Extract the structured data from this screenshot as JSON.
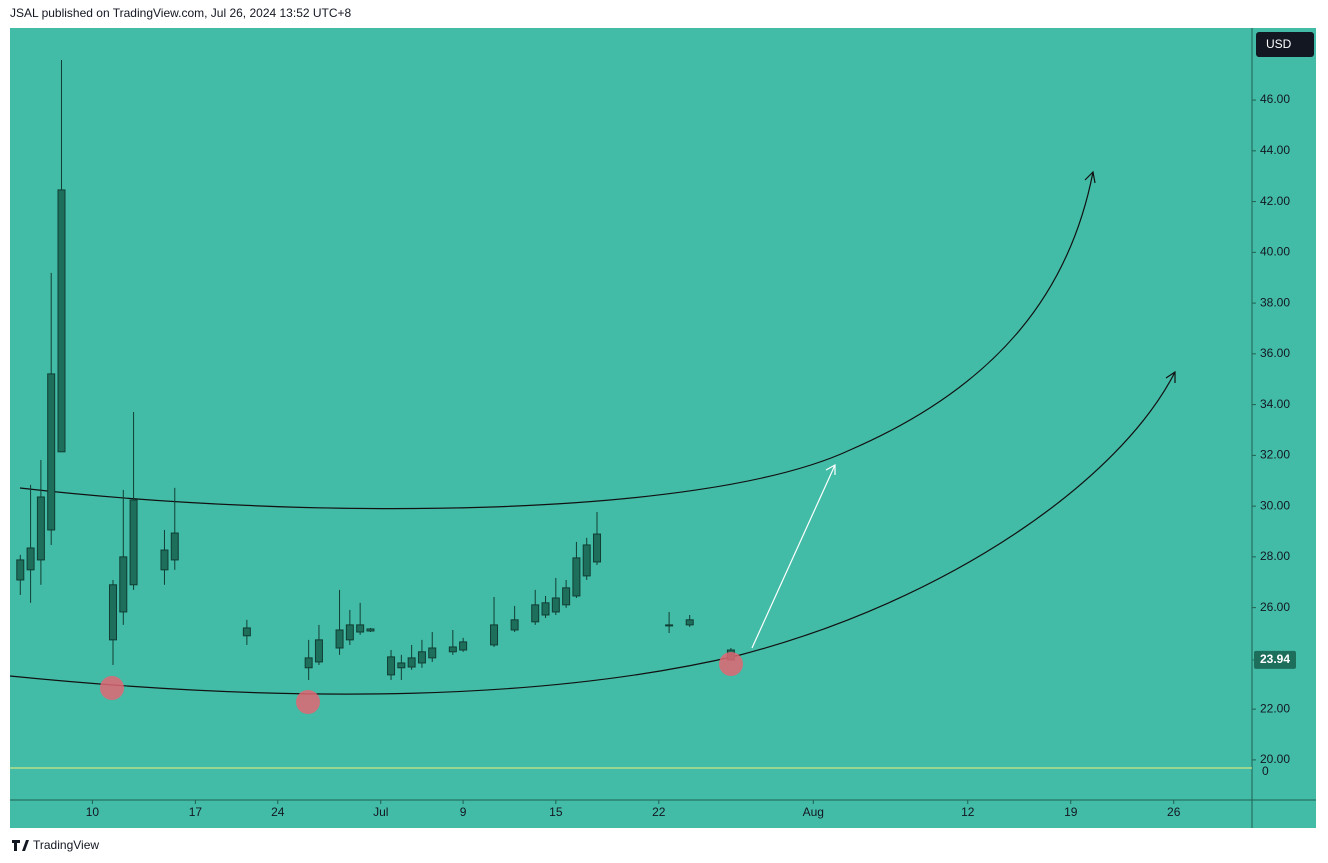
{
  "header": "JSAL published on TradingView.com, Jul 26, 2024 13:52 UTC+8",
  "footer": "TradingView",
  "chart_data": {
    "type": "candlestick",
    "currency": "USD",
    "background": "#43bca7",
    "color": "#1e6e5c",
    "x": [
      0,
      1,
      2,
      3,
      4,
      9,
      10,
      11,
      14,
      15,
      22,
      28,
      29,
      31,
      32,
      33,
      34,
      36,
      37,
      38,
      39,
      40,
      42,
      43,
      46,
      48,
      50,
      51,
      52,
      53,
      54,
      55,
      56,
      63,
      65,
      69
    ],
    "open": [
      27.09,
      27.49,
      27.88,
      29.06,
      32.14,
      24.73,
      25.83,
      26.9,
      27.49,
      27.88,
      25.2,
      23.63,
      23.86,
      24.41,
      24.73,
      25.04,
      25.08,
      24.06,
      23.63,
      23.66,
      23.82,
      24.02,
      24.26,
      24.33,
      24.53,
      25.12,
      25.44,
      25.71,
      25.83,
      26.11,
      26.46,
      27.25,
      27.8,
      25.32,
      25.32,
      24.33
    ],
    "high": [
      28.08,
      30.84,
      31.82,
      39.19,
      47.58,
      27.09,
      30.64,
      33.71,
      29.06,
      30.72,
      25.52,
      24.73,
      25.32,
      26.7,
      25.91,
      26.19,
      25.2,
      24.33,
      24.14,
      24.53,
      24.73,
      25.04,
      25.12,
      24.81,
      26.42,
      26.07,
      26.7,
      26.46,
      27.17,
      27.09,
      28.59,
      28.75,
      29.77,
      25.83,
      25.71,
      24.41
    ],
    "low": [
      26.5,
      26.19,
      26.9,
      28.47,
      32.14,
      23.74,
      25.32,
      26.7,
      26.9,
      27.49,
      24.53,
      23.15,
      23.74,
      24.14,
      24.53,
      24.93,
      25.04,
      23.15,
      23.15,
      23.55,
      23.63,
      23.86,
      24.14,
      24.26,
      24.45,
      25.04,
      25.32,
      25.59,
      25.71,
      25.99,
      26.38,
      27.09,
      27.68,
      25.0,
      25.24,
      23.94
    ],
    "close": [
      27.88,
      28.35,
      30.36,
      35.21,
      42.46,
      26.9,
      28.0,
      30.24,
      28.27,
      28.94,
      24.89,
      24.02,
      24.73,
      25.12,
      25.32,
      25.32,
      25.16,
      23.35,
      23.82,
      24.02,
      24.26,
      24.41,
      24.45,
      24.65,
      25.32,
      25.52,
      26.11,
      26.19,
      26.38,
      26.78,
      27.96,
      28.47,
      28.9,
      25.28,
      25.52,
      23.94
    ],
    "xlim": [
      -1,
      119.6
    ],
    "xticks": [
      {
        "value": 7,
        "label": "10"
      },
      {
        "value": 17,
        "label": "17"
      },
      {
        "value": 25,
        "label": "24"
      },
      {
        "value": 35,
        "label": "Jul"
      },
      {
        "value": 43,
        "label": "9"
      },
      {
        "value": 52,
        "label": "15"
      },
      {
        "value": 62,
        "label": "22"
      },
      {
        "value": 77,
        "label": "Aug"
      },
      {
        "value": 92,
        "label": "12"
      },
      {
        "value": 102,
        "label": "19"
      },
      {
        "value": 112,
        "label": "26"
      }
    ],
    "ylim": [
      18.42,
      48.84
    ],
    "yticks": [
      {
        "value": 20,
        "label": "20.00"
      },
      {
        "value": 22,
        "label": "22.00"
      },
      {
        "value": 26,
        "label": "26.00"
      },
      {
        "value": 28,
        "label": "28.00"
      },
      {
        "value": 30,
        "label": "30.00"
      },
      {
        "value": 32,
        "label": "32.00"
      },
      {
        "value": 34,
        "label": "34.00"
      },
      {
        "value": 36,
        "label": "36.00"
      },
      {
        "value": 38,
        "label": "38.00"
      },
      {
        "value": 40,
        "label": "40.00"
      },
      {
        "value": 42,
        "label": "42.00"
      },
      {
        "value": 44,
        "label": "44.00"
      },
      {
        "value": 46,
        "label": "46.00"
      }
    ],
    "last_price": 23.94,
    "indicator_yticks": [
      0
    ]
  }
}
